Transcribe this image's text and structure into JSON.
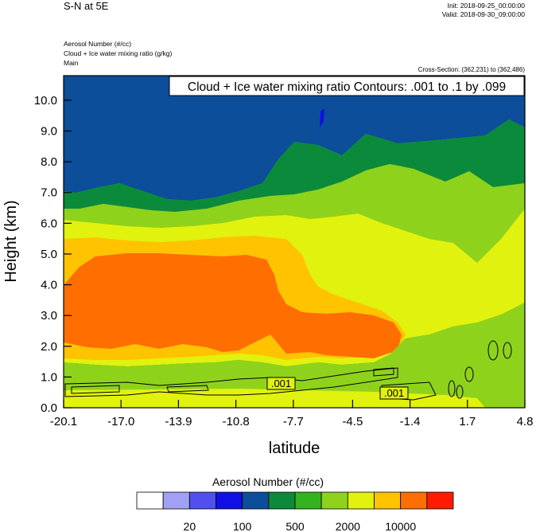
{
  "header": {
    "title": "S-N at 5E",
    "init": "Init: 2018-09-25_00:00:00",
    "valid": "Valid: 2018-09-30_09:00:00",
    "fields": [
      "Aerosol Number   (#/cc)",
      "Cloud + Ice water mixing ratio   (g/kg)",
      "Main"
    ],
    "cross_section": "Cross-Section: (362,231) to (362,486)"
  },
  "chart_data": {
    "type": "heatmap",
    "title": "S-N at 5E",
    "xlabel": "latitude",
    "ylabel": "Height (km)",
    "x_ticks": [
      "-20.1",
      "-17.0",
      "-13.9",
      "-10.8",
      "-7.7",
      "-4.5",
      "-1.4",
      "1.7",
      "4.8"
    ],
    "xlim": [
      -20.1,
      4.8
    ],
    "y_ticks": [
      "0.0",
      "1.0",
      "2.0",
      "3.0",
      "4.0",
      "5.0",
      "6.0",
      "7.0",
      "8.0",
      "9.0",
      "10.0"
    ],
    "ylim": [
      0,
      10.8
    ],
    "contour_annotation": "Cloud + Ice water mixing ratio Contours: .001 to .1 by .099",
    "contour_labels": [
      {
        "text": ".001",
        "x": -7.4,
        "y": 0.8
      },
      {
        "text": ".001",
        "x": -2.0,
        "y": 0.45
      }
    ],
    "colorbar": {
      "title": "Aerosol Number  (#/cc)",
      "colors": [
        "#ffffff",
        "#a0a0f5",
        "#5050f0",
        "#1010e6",
        "#0c4e9a",
        "#0c8a3c",
        "#33b31e",
        "#8fd21c",
        "#e1f20e",
        "#ffc300",
        "#ff6e00",
        "#ff1a00"
      ],
      "labels": [
        "20",
        "100",
        "500",
        "2000",
        "10000"
      ]
    }
  }
}
